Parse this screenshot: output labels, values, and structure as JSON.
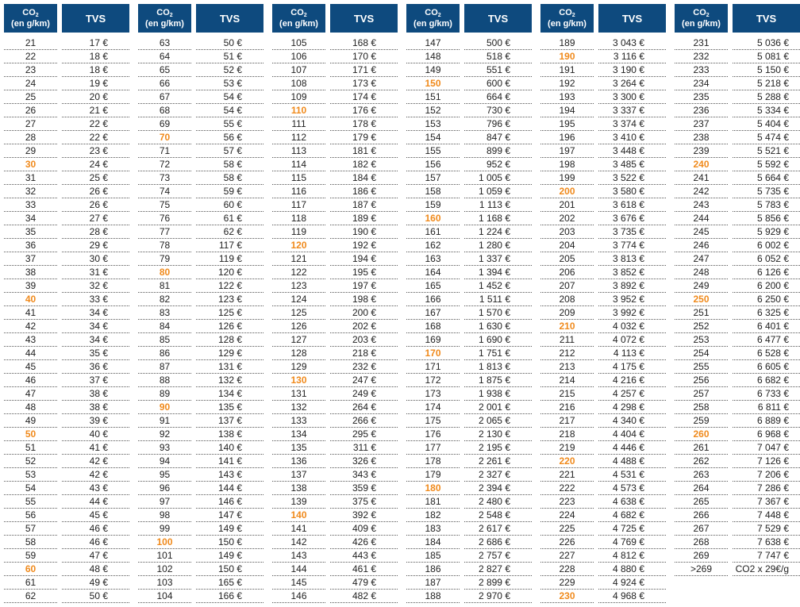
{
  "header": {
    "co2_label": "CO",
    "co2_sub": "2",
    "co2_unit": "(en g/km)",
    "tvs_label": "TVS"
  },
  "colors": {
    "header_bg": "#0e4a7e",
    "highlight": "#f08a1c"
  },
  "columns": [
    {
      "rows": [
        {
          "co2": "21",
          "tvs": "17 €"
        },
        {
          "co2": "22",
          "tvs": "18 €"
        },
        {
          "co2": "23",
          "tvs": "18 €"
        },
        {
          "co2": "24",
          "tvs": "19 €"
        },
        {
          "co2": "25",
          "tvs": "20 €"
        },
        {
          "co2": "26",
          "tvs": "21 €"
        },
        {
          "co2": "27",
          "tvs": "22 €"
        },
        {
          "co2": "28",
          "tvs": "22 €"
        },
        {
          "co2": "29",
          "tvs": "23 €"
        },
        {
          "co2": "30",
          "tvs": "24 €",
          "highlight": true
        },
        {
          "co2": "31",
          "tvs": "25 €"
        },
        {
          "co2": "32",
          "tvs": "26 €"
        },
        {
          "co2": "33",
          "tvs": "26 €"
        },
        {
          "co2": "34",
          "tvs": "27 €"
        },
        {
          "co2": "35",
          "tvs": "28 €"
        },
        {
          "co2": "36",
          "tvs": "29 €"
        },
        {
          "co2": "37",
          "tvs": "30 €"
        },
        {
          "co2": "38",
          "tvs": "31 €"
        },
        {
          "co2": "39",
          "tvs": "32 €"
        },
        {
          "co2": "40",
          "tvs": "33 €",
          "highlight": true
        },
        {
          "co2": "41",
          "tvs": "34 €"
        },
        {
          "co2": "42",
          "tvs": "34 €"
        },
        {
          "co2": "43",
          "tvs": "34 €"
        },
        {
          "co2": "44",
          "tvs": "35 €"
        },
        {
          "co2": "45",
          "tvs": "36 €"
        },
        {
          "co2": "46",
          "tvs": "37 €"
        },
        {
          "co2": "47",
          "tvs": "38 €"
        },
        {
          "co2": "48",
          "tvs": "38 €"
        },
        {
          "co2": "49",
          "tvs": "39 €"
        },
        {
          "co2": "50",
          "tvs": "40 €",
          "highlight": true
        },
        {
          "co2": "51",
          "tvs": "41 €"
        },
        {
          "co2": "52",
          "tvs": "42 €"
        },
        {
          "co2": "53",
          "tvs": "42 €"
        },
        {
          "co2": "54",
          "tvs": "43 €"
        },
        {
          "co2": "55",
          "tvs": "44 €"
        },
        {
          "co2": "56",
          "tvs": "45 €"
        },
        {
          "co2": "57",
          "tvs": "46 €"
        },
        {
          "co2": "58",
          "tvs": "46 €"
        },
        {
          "co2": "59",
          "tvs": "47 €"
        },
        {
          "co2": "60",
          "tvs": "48 €",
          "highlight": true
        },
        {
          "co2": "61",
          "tvs": "49 €"
        },
        {
          "co2": "62",
          "tvs": "50 €"
        }
      ]
    },
    {
      "rows": [
        {
          "co2": "63",
          "tvs": "50 €"
        },
        {
          "co2": "64",
          "tvs": "51 €"
        },
        {
          "co2": "65",
          "tvs": "52 €"
        },
        {
          "co2": "66",
          "tvs": "53 €"
        },
        {
          "co2": "67",
          "tvs": "54 €"
        },
        {
          "co2": "68",
          "tvs": "54 €"
        },
        {
          "co2": "69",
          "tvs": "55 €"
        },
        {
          "co2": "70",
          "tvs": "56 €",
          "highlight": true
        },
        {
          "co2": "71",
          "tvs": "57 €"
        },
        {
          "co2": "72",
          "tvs": "58 €"
        },
        {
          "co2": "73",
          "tvs": "58 €"
        },
        {
          "co2": "74",
          "tvs": "59 €"
        },
        {
          "co2": "75",
          "tvs": "60 €"
        },
        {
          "co2": "76",
          "tvs": "61 €"
        },
        {
          "co2": "77",
          "tvs": "62 €"
        },
        {
          "co2": "78",
          "tvs": "117 €"
        },
        {
          "co2": "79",
          "tvs": "119 €"
        },
        {
          "co2": "80",
          "tvs": "120 €",
          "highlight": true
        },
        {
          "co2": "81",
          "tvs": "122 €"
        },
        {
          "co2": "82",
          "tvs": "123 €"
        },
        {
          "co2": "83",
          "tvs": "125 €"
        },
        {
          "co2": "84",
          "tvs": "126 €"
        },
        {
          "co2": "85",
          "tvs": "128 €"
        },
        {
          "co2": "86",
          "tvs": "129 €"
        },
        {
          "co2": "87",
          "tvs": "131 €"
        },
        {
          "co2": "88",
          "tvs": "132 €"
        },
        {
          "co2": "89",
          "tvs": "134 €"
        },
        {
          "co2": "90",
          "tvs": "135 €",
          "highlight": true
        },
        {
          "co2": "91",
          "tvs": "137 €"
        },
        {
          "co2": "92",
          "tvs": "138 €"
        },
        {
          "co2": "93",
          "tvs": "140 €"
        },
        {
          "co2": "94",
          "tvs": "141 €"
        },
        {
          "co2": "95",
          "tvs": "143 €"
        },
        {
          "co2": "96",
          "tvs": "144 €"
        },
        {
          "co2": "97",
          "tvs": "146 €"
        },
        {
          "co2": "98",
          "tvs": "147 €"
        },
        {
          "co2": "99",
          "tvs": "149 €"
        },
        {
          "co2": "100",
          "tvs": "150 €",
          "highlight": true
        },
        {
          "co2": "101",
          "tvs": "149 €"
        },
        {
          "co2": "102",
          "tvs": "150 €"
        },
        {
          "co2": "103",
          "tvs": "165 €"
        },
        {
          "co2": "104",
          "tvs": "166 €"
        }
      ]
    },
    {
      "rows": [
        {
          "co2": "105",
          "tvs": "168 €"
        },
        {
          "co2": "106",
          "tvs": "170 €"
        },
        {
          "co2": "107",
          "tvs": "171 €"
        },
        {
          "co2": "108",
          "tvs": "173 €"
        },
        {
          "co2": "109",
          "tvs": "174 €"
        },
        {
          "co2": "110",
          "tvs": "176 €",
          "highlight": true
        },
        {
          "co2": "111",
          "tvs": "178 €"
        },
        {
          "co2": "112",
          "tvs": "179 €"
        },
        {
          "co2": "113",
          "tvs": "181 €"
        },
        {
          "co2": "114",
          "tvs": "182 €"
        },
        {
          "co2": "115",
          "tvs": "184 €"
        },
        {
          "co2": "116",
          "tvs": "186 €"
        },
        {
          "co2": "117",
          "tvs": "187 €"
        },
        {
          "co2": "118",
          "tvs": "189 €"
        },
        {
          "co2": "119",
          "tvs": "190 €"
        },
        {
          "co2": "120",
          "tvs": "192 €",
          "highlight": true
        },
        {
          "co2": "121",
          "tvs": "194 €"
        },
        {
          "co2": "122",
          "tvs": "195 €"
        },
        {
          "co2": "123",
          "tvs": "197 €"
        },
        {
          "co2": "124",
          "tvs": "198 €"
        },
        {
          "co2": "125",
          "tvs": "200 €"
        },
        {
          "co2": "126",
          "tvs": "202 €"
        },
        {
          "co2": "127",
          "tvs": "203 €"
        },
        {
          "co2": "128",
          "tvs": "218 €"
        },
        {
          "co2": "129",
          "tvs": "232 €"
        },
        {
          "co2": "130",
          "tvs": "247 €",
          "highlight": true
        },
        {
          "co2": "131",
          "tvs": "249 €"
        },
        {
          "co2": "132",
          "tvs": "264 €"
        },
        {
          "co2": "133",
          "tvs": "266 €"
        },
        {
          "co2": "134",
          "tvs": "295 €"
        },
        {
          "co2": "135",
          "tvs": "311 €"
        },
        {
          "co2": "136",
          "tvs": "326 €"
        },
        {
          "co2": "137",
          "tvs": "343 €"
        },
        {
          "co2": "138",
          "tvs": "359 €"
        },
        {
          "co2": "139",
          "tvs": "375 €"
        },
        {
          "co2": "140",
          "tvs": "392 €",
          "highlight": true
        },
        {
          "co2": "141",
          "tvs": "409 €"
        },
        {
          "co2": "142",
          "tvs": "426 €"
        },
        {
          "co2": "143",
          "tvs": "443 €"
        },
        {
          "co2": "144",
          "tvs": "461 €"
        },
        {
          "co2": "145",
          "tvs": "479 €"
        },
        {
          "co2": "146",
          "tvs": "482 €"
        }
      ]
    },
    {
      "rows": [
        {
          "co2": "147",
          "tvs": "500 €"
        },
        {
          "co2": "148",
          "tvs": "518 €"
        },
        {
          "co2": "149",
          "tvs": "551 €"
        },
        {
          "co2": "150",
          "tvs": "600 €",
          "highlight": true
        },
        {
          "co2": "151",
          "tvs": "664 €"
        },
        {
          "co2": "152",
          "tvs": "730 €"
        },
        {
          "co2": "153",
          "tvs": "796 €"
        },
        {
          "co2": "154",
          "tvs": "847 €"
        },
        {
          "co2": "155",
          "tvs": "899 €"
        },
        {
          "co2": "156",
          "tvs": "952 €"
        },
        {
          "co2": "157",
          "tvs": "1 005 €"
        },
        {
          "co2": "158",
          "tvs": "1 059 €"
        },
        {
          "co2": "159",
          "tvs": "1 113 €"
        },
        {
          "co2": "160",
          "tvs": "1 168 €",
          "highlight": true
        },
        {
          "co2": "161",
          "tvs": "1 224 €"
        },
        {
          "co2": "162",
          "tvs": "1 280 €"
        },
        {
          "co2": "163",
          "tvs": "1 337 €"
        },
        {
          "co2": "164",
          "tvs": "1 394 €"
        },
        {
          "co2": "165",
          "tvs": "1 452 €"
        },
        {
          "co2": "166",
          "tvs": "1 511 €"
        },
        {
          "co2": "167",
          "tvs": "1 570 €"
        },
        {
          "co2": "168",
          "tvs": "1 630 €"
        },
        {
          "co2": "169",
          "tvs": "1 690 €"
        },
        {
          "co2": "170",
          "tvs": "1 751 €",
          "highlight": true
        },
        {
          "co2": "171",
          "tvs": "1 813 €"
        },
        {
          "co2": "172",
          "tvs": "1 875 €"
        },
        {
          "co2": "173",
          "tvs": "1 938 €"
        },
        {
          "co2": "174",
          "tvs": "2 001 €"
        },
        {
          "co2": "175",
          "tvs": "2 065 €"
        },
        {
          "co2": "176",
          "tvs": "2 130 €"
        },
        {
          "co2": "177",
          "tvs": "2 195 €"
        },
        {
          "co2": "178",
          "tvs": "2 261 €"
        },
        {
          "co2": "179",
          "tvs": "2 327 €"
        },
        {
          "co2": "180",
          "tvs": "2 394 €",
          "highlight": true
        },
        {
          "co2": "181",
          "tvs": "2 480 €"
        },
        {
          "co2": "182",
          "tvs": "2 548 €"
        },
        {
          "co2": "183",
          "tvs": "2 617 €"
        },
        {
          "co2": "184",
          "tvs": "2 686 €"
        },
        {
          "co2": "185",
          "tvs": "2 757 €"
        },
        {
          "co2": "186",
          "tvs": "2 827 €"
        },
        {
          "co2": "187",
          "tvs": "2 899 €"
        },
        {
          "co2": "188",
          "tvs": "2 970 €"
        }
      ]
    },
    {
      "rows": [
        {
          "co2": "189",
          "tvs": "3 043 €"
        },
        {
          "co2": "190",
          "tvs": "3 116 €",
          "highlight": true
        },
        {
          "co2": "191",
          "tvs": "3 190 €"
        },
        {
          "co2": "192",
          "tvs": "3 264 €"
        },
        {
          "co2": "193",
          "tvs": "3 300 €"
        },
        {
          "co2": "194",
          "tvs": "3 337 €"
        },
        {
          "co2": "195",
          "tvs": "3 374 €"
        },
        {
          "co2": "196",
          "tvs": "3 410 €"
        },
        {
          "co2": "197",
          "tvs": "3 448 €"
        },
        {
          "co2": "198",
          "tvs": "3 485 €"
        },
        {
          "co2": "199",
          "tvs": "3 522 €"
        },
        {
          "co2": "200",
          "tvs": "3 580 €",
          "highlight": true
        },
        {
          "co2": "201",
          "tvs": "3 618 €"
        },
        {
          "co2": "202",
          "tvs": "3 676 €"
        },
        {
          "co2": "203",
          "tvs": "3 735 €"
        },
        {
          "co2": "204",
          "tvs": "3 774 €"
        },
        {
          "co2": "205",
          "tvs": "3 813 €"
        },
        {
          "co2": "206",
          "tvs": "3 852 €"
        },
        {
          "co2": "207",
          "tvs": "3 892 €"
        },
        {
          "co2": "208",
          "tvs": "3 952 €"
        },
        {
          "co2": "209",
          "tvs": "3 992 €"
        },
        {
          "co2": "210",
          "tvs": "4 032 €",
          "highlight": true
        },
        {
          "co2": "211",
          "tvs": "4 072 €"
        },
        {
          "co2": "212",
          "tvs": "4 113 €"
        },
        {
          "co2": "213",
          "tvs": "4 175 €"
        },
        {
          "co2": "214",
          "tvs": "4 216 €"
        },
        {
          "co2": "215",
          "tvs": "4 257 €"
        },
        {
          "co2": "216",
          "tvs": "4 298 €"
        },
        {
          "co2": "217",
          "tvs": "4 340 €"
        },
        {
          "co2": "218",
          "tvs": "4 404 €"
        },
        {
          "co2": "219",
          "tvs": "4 446 €"
        },
        {
          "co2": "220",
          "tvs": "4 488 €",
          "highlight": true
        },
        {
          "co2": "221",
          "tvs": "4 531 €"
        },
        {
          "co2": "222",
          "tvs": "4 573 €"
        },
        {
          "co2": "223",
          "tvs": "4 638 €"
        },
        {
          "co2": "224",
          "tvs": "4 682 €"
        },
        {
          "co2": "225",
          "tvs": "4 725 €"
        },
        {
          "co2": "226",
          "tvs": "4 769 €"
        },
        {
          "co2": "227",
          "tvs": "4 812 €"
        },
        {
          "co2": "228",
          "tvs": "4 880 €"
        },
        {
          "co2": "229",
          "tvs": "4 924 €"
        },
        {
          "co2": "230",
          "tvs": "4 968 €",
          "highlight": true
        }
      ]
    },
    {
      "rows": [
        {
          "co2": "231",
          "tvs": "5 036 €"
        },
        {
          "co2": "232",
          "tvs": "5 081 €"
        },
        {
          "co2": "233",
          "tvs": "5 150 €"
        },
        {
          "co2": "234",
          "tvs": "5 218 €"
        },
        {
          "co2": "235",
          "tvs": "5 288 €"
        },
        {
          "co2": "236",
          "tvs": "5 334 €"
        },
        {
          "co2": "237",
          "tvs": "5 404 €"
        },
        {
          "co2": "238",
          "tvs": "5 474 €"
        },
        {
          "co2": "239",
          "tvs": "5 521 €"
        },
        {
          "co2": "240",
          "tvs": "5 592 €",
          "highlight": true
        },
        {
          "co2": "241",
          "tvs": "5 664 €"
        },
        {
          "co2": "242",
          "tvs": "5 735 €"
        },
        {
          "co2": "243",
          "tvs": "5 783 €"
        },
        {
          "co2": "244",
          "tvs": "5 856 €"
        },
        {
          "co2": "245",
          "tvs": "5 929 €"
        },
        {
          "co2": "246",
          "tvs": "6 002 €"
        },
        {
          "co2": "247",
          "tvs": "6 052 €"
        },
        {
          "co2": "248",
          "tvs": "6 126 €"
        },
        {
          "co2": "249",
          "tvs": "6 200 €"
        },
        {
          "co2": "250",
          "tvs": "6 250 €",
          "highlight": true
        },
        {
          "co2": "251",
          "tvs": "6 325 €"
        },
        {
          "co2": "252",
          "tvs": "6 401 €"
        },
        {
          "co2": "253",
          "tvs": "6 477 €"
        },
        {
          "co2": "254",
          "tvs": "6 528 €"
        },
        {
          "co2": "255",
          "tvs": "6 605 €"
        },
        {
          "co2": "256",
          "tvs": "6 682 €"
        },
        {
          "co2": "257",
          "tvs": "6 733 €"
        },
        {
          "co2": "258",
          "tvs": "6 811 €"
        },
        {
          "co2": "259",
          "tvs": "6 889 €"
        },
        {
          "co2": "260",
          "tvs": "6 968 €",
          "highlight": true
        },
        {
          "co2": "261",
          "tvs": "7 047 €"
        },
        {
          "co2": "262",
          "tvs": "7 126 €"
        },
        {
          "co2": "263",
          "tvs": "7 206 €"
        },
        {
          "co2": "264",
          "tvs": "7 286 €"
        },
        {
          "co2": "265",
          "tvs": "7 367 €"
        },
        {
          "co2": "266",
          "tvs": "7 448 €"
        },
        {
          "co2": "267",
          "tvs": "7 529 €"
        },
        {
          "co2": "268",
          "tvs": "7 638 €"
        },
        {
          "co2": "269",
          "tvs": "7 747 €"
        },
        {
          "co2": ">269",
          "tvs": "CO2 x 29€/g"
        }
      ]
    }
  ]
}
